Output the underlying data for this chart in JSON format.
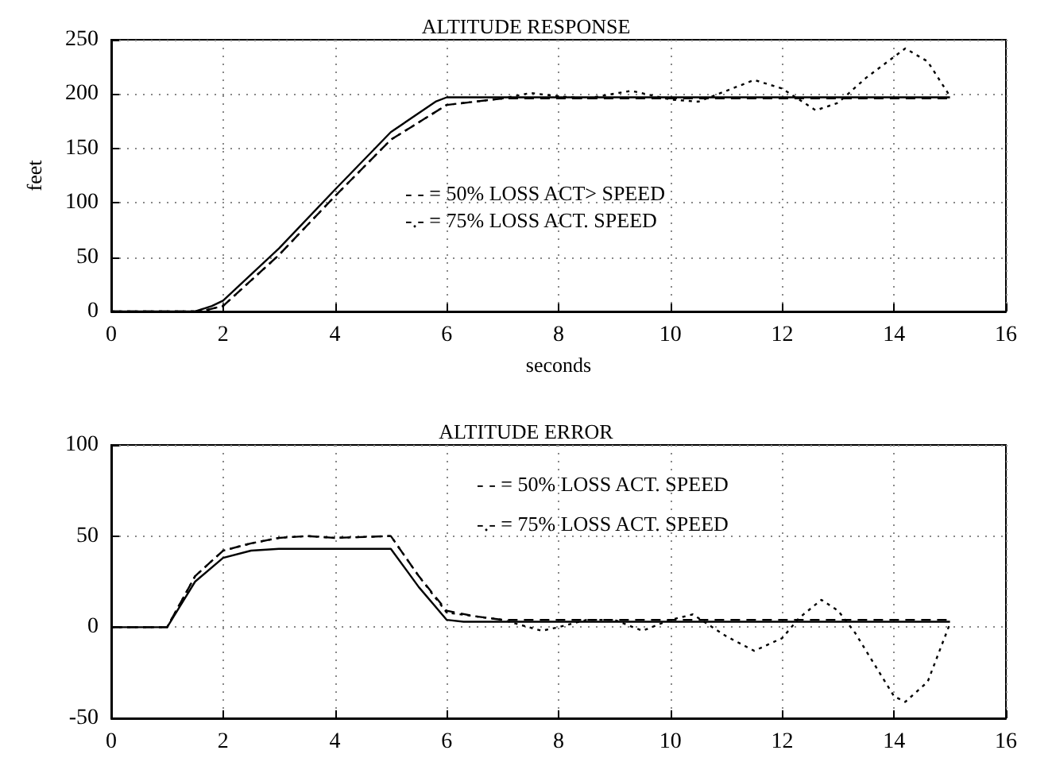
{
  "chart_data": [
    {
      "type": "line",
      "title": "ALTITUDE RESPONSE",
      "xlabel": "seconds",
      "ylabel": "feet",
      "xlim": [
        0,
        16
      ],
      "xticks": [
        0,
        2,
        4,
        6,
        8,
        10,
        12,
        14,
        16
      ],
      "ylim": [
        0,
        250
      ],
      "yticks": [
        0,
        50,
        100,
        150,
        200,
        250
      ],
      "grid": true,
      "marker": "none",
      "annotations": [
        "- - = 50% LOSS ACT> SPEED",
        "-.- = 75% LOSS ACT. SPEED"
      ],
      "series": [
        {
          "color": "#000000",
          "line_style": "solid",
          "x": [
            0,
            1.5,
            1.8,
            2,
            3,
            4,
            5,
            5.8,
            6,
            15
          ],
          "values": [
            0,
            0,
            5,
            10,
            58,
            112,
            165,
            193,
            197,
            197
          ]
        },
        {
          "color": "#000000",
          "line_style": "dashed",
          "x": [
            0,
            1.6,
            2,
            3,
            4,
            5,
            6,
            7,
            15
          ],
          "values": [
            0,
            0,
            5,
            52,
            106,
            158,
            190,
            196,
            196
          ]
        },
        {
          "color": "#000000",
          "line_style": "dotted",
          "x": [
            0,
            1.6,
            2,
            3,
            4,
            5,
            6,
            7,
            7.5,
            8,
            8.5,
            9.3,
            10,
            10.5,
            11,
            11.5,
            12,
            12.6,
            13,
            13.5,
            14.2,
            14.6,
            15
          ],
          "values": [
            0,
            0,
            5,
            52,
            106,
            158,
            190,
            196,
            201,
            198,
            196,
            203,
            195,
            193,
            203,
            213,
            205,
            185,
            192,
            215,
            242,
            230,
            198
          ]
        }
      ]
    },
    {
      "type": "line",
      "title": "ALTITUDE ERROR",
      "xlim": [
        0,
        16
      ],
      "xticks": [
        0,
        2,
        4,
        6,
        8,
        10,
        12,
        14,
        16
      ],
      "ylim": [
        -50,
        100
      ],
      "yticks": [
        -50,
        0,
        50,
        100
      ],
      "grid": true,
      "marker": "none",
      "annotations": [
        "- - = 50% LOSS ACT. SPEED",
        "-.- = 75% LOSS ACT. SPEED"
      ],
      "series": [
        {
          "color": "#000000",
          "line_style": "solid",
          "x": [
            0,
            1,
            1.5,
            2,
            2.5,
            3,
            5,
            5.5,
            6,
            6.3,
            15
          ],
          "values": [
            0,
            0,
            25,
            38,
            42,
            43,
            43,
            22,
            4,
            3,
            3
          ]
        },
        {
          "color": "#000000",
          "line_style": "dashed",
          "x": [
            0,
            1,
            1.5,
            2,
            2.5,
            3,
            3.5,
            4,
            5,
            5.5,
            6,
            6.5,
            7,
            15
          ],
          "values": [
            0,
            0,
            28,
            42,
            46,
            49,
            50,
            49,
            50,
            28,
            9,
            6,
            4,
            4
          ]
        },
        {
          "color": "#000000",
          "line_style": "dotted",
          "x": [
            0,
            1,
            1.5,
            2,
            2.5,
            3,
            3.5,
            4,
            5,
            5.5,
            6,
            7,
            7.7,
            8,
            8.5,
            9,
            9.5,
            10,
            10.4,
            11,
            11.5,
            12,
            12.3,
            12.7,
            13,
            13.3,
            14,
            14.2,
            14.6,
            15
          ],
          "values": [
            0,
            0,
            28,
            42,
            46,
            49,
            50,
            49,
            50,
            28,
            8,
            4,
            -2,
            0,
            4,
            4,
            -2,
            4,
            7,
            -5,
            -13,
            -6,
            5,
            15,
            9,
            -3,
            -38,
            -41,
            -30,
            2
          ]
        }
      ]
    }
  ]
}
